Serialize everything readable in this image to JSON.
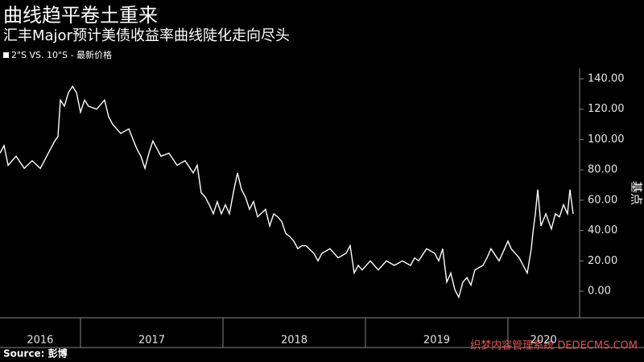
{
  "chart_data": {
    "type": "line",
    "title": "曲线趋平卷土重来",
    "subtitle": "汇丰Major预计美债收益率曲线陡化走向尽头",
    "y_axis_label": "基点",
    "source": "Source: 彭博",
    "watermark": "织梦内容管理系统 DEDECMS.COM",
    "x": [
      2016.435,
      2016.463,
      2016.492,
      2016.548,
      2016.605,
      2016.661,
      2016.718,
      2016.774,
      2016.819,
      2016.842,
      2016.859,
      2016.887,
      2016.915,
      2016.944,
      2016.972,
      2017.0,
      2017.028,
      2017.056,
      2017.113,
      2017.169,
      2017.198,
      2017.226,
      2017.282,
      2017.339,
      2017.395,
      2017.424,
      2017.452,
      2017.48,
      2017.508,
      2017.537,
      2017.565,
      2017.621,
      2017.678,
      2017.734,
      2017.791,
      2017.819,
      2017.847,
      2017.876,
      2017.904,
      2017.932,
      2017.96,
      2017.989,
      2018.017,
      2018.045,
      2018.073,
      2018.102,
      2018.13,
      2018.158,
      2018.186,
      2018.215,
      2018.243,
      2018.299,
      2018.328,
      2018.356,
      2018.384,
      2018.412,
      2018.441,
      2018.469,
      2018.497,
      2018.525,
      2018.554,
      2018.582,
      2018.638,
      2018.667,
      2018.695,
      2018.751,
      2018.808,
      2018.864,
      2018.893,
      2018.921,
      2018.949,
      2018.977,
      2019.034,
      2019.09,
      2019.147,
      2019.203,
      2019.26,
      2019.316,
      2019.345,
      2019.373,
      2019.429,
      2019.486,
      2019.514,
      2019.542,
      2019.571,
      2019.599,
      2019.627,
      2019.655,
      2019.684,
      2019.712,
      2019.74,
      2019.768,
      2019.825,
      2019.853,
      2019.881,
      2019.938,
      2020.0,
      2020.023,
      2020.051,
      2020.079,
      2020.107,
      2020.136,
      2020.164,
      2020.175,
      2020.192,
      2020.209,
      2020.232,
      2020.266,
      2020.305,
      2020.333,
      2020.362,
      2020.39,
      2020.418,
      2020.435,
      2020.458
    ],
    "series": [
      {
        "name": "2\"S VS. 10\"S - 最新价格",
        "color": "#ffffff",
        "values": [
          91,
          96,
          83,
          89,
          81,
          86,
          81,
          91,
          99,
          102,
          126,
          122,
          131,
          135,
          131,
          118,
          126,
          122,
          120,
          126,
          115,
          110,
          104,
          107,
          94,
          89,
          81,
          91,
          99,
          94,
          89,
          91,
          83,
          86,
          78,
          83,
          65,
          62,
          57,
          51,
          59,
          51,
          57,
          51,
          65,
          78,
          67,
          62,
          54,
          59,
          49,
          54,
          43,
          51,
          49,
          46,
          38,
          36,
          33,
          28,
          30,
          30,
          25,
          20,
          25,
          28,
          22,
          25,
          30,
          12,
          17,
          14,
          20,
          14,
          20,
          17,
          20,
          17,
          22,
          20,
          28,
          25,
          20,
          28,
          6,
          12,
          1,
          -4,
          6,
          9,
          4,
          14,
          17,
          22,
          28,
          20,
          33,
          28,
          25,
          22,
          17,
          12,
          28,
          38,
          51,
          67,
          43,
          51,
          41,
          51,
          49,
          57,
          51,
          67,
          51
        ]
      }
    ],
    "xlim": [
      2016.435,
      2020.503
    ],
    "xticks": [
      {
        "value": 2016.717,
        "label": "2016"
      },
      {
        "value": 2017.5,
        "label": "2017"
      },
      {
        "value": 2018.5,
        "label": "2018"
      },
      {
        "value": 2019.5,
        "label": "2019"
      },
      {
        "value": 2020.25,
        "label": "2020"
      }
    ],
    "x_dividers": [
      2017,
      2018,
      2019,
      2020
    ],
    "ylim": [
      -17.5,
      146.9
    ],
    "yticks": [
      {
        "value": 0,
        "label": "0.00"
      },
      {
        "value": 20,
        "label": "20.00"
      },
      {
        "value": 40,
        "label": "40.00"
      },
      {
        "value": 60,
        "label": "60.00"
      },
      {
        "value": 80,
        "label": "80.00"
      },
      {
        "value": 100,
        "label": "100.00"
      },
      {
        "value": 120,
        "label": "120.00"
      },
      {
        "value": 140,
        "label": "140.00"
      }
    ]
  }
}
